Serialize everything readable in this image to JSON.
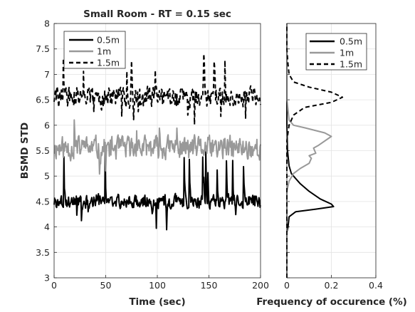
{
  "chart_data": [
    {
      "type": "line",
      "title": "Small Room -  RT = 0.15 sec",
      "xlabel": "Time (sec)",
      "ylabel": "BSMD STD",
      "xlim": [
        0,
        200
      ],
      "ylim": [
        3,
        8
      ],
      "xticks": [
        "0",
        "50",
        "100",
        "150",
        "200"
      ],
      "yticks": [
        "3",
        "3.5",
        "4",
        "4.5",
        "5",
        "5.5",
        "6",
        "6.5",
        "7",
        "7.5",
        "8"
      ],
      "grid": true,
      "legend_position": "top-left",
      "series": [
        {
          "name": "0.5m",
          "color": "#000000",
          "dash": "solid",
          "mean": 4.5,
          "spread": 0.12,
          "spikes": 0.7,
          "seed": 3
        },
        {
          "name": "1m",
          "color": "#999999",
          "dash": "solid",
          "mean": 5.55,
          "spread": 0.2,
          "spikes": 0.5,
          "seed": 11
        },
        {
          "name": "1.5m",
          "color": "#000000",
          "dash": "dashed",
          "mean": 6.55,
          "spread": 0.18,
          "spikes": 0.6,
          "seed": 29
        }
      ]
    },
    {
      "type": "line",
      "title": "",
      "xlabel": "Frequency of occurence (%)",
      "ylabel": "",
      "xlim": [
        0,
        0.4
      ],
      "ylim": [
        3,
        8
      ],
      "xticks": [
        "0",
        "0.2",
        "0.4"
      ],
      "grid": true,
      "legend_position": "top-right",
      "series": [
        {
          "name": "0.5m",
          "color": "#000000",
          "dash": "solid",
          "points": [
            [
              0,
              3.0
            ],
            [
              0,
              3.9
            ],
            [
              0.005,
              4.0
            ],
            [
              0.01,
              4.2
            ],
            [
              0.04,
              4.3
            ],
            [
              0.13,
              4.35
            ],
            [
              0.21,
              4.4
            ],
            [
              0.2,
              4.45
            ],
            [
              0.15,
              4.55
            ],
            [
              0.1,
              4.7
            ],
            [
              0.06,
              4.85
            ],
            [
              0.04,
              4.95
            ],
            [
              0.02,
              5.05
            ],
            [
              0.01,
              5.2
            ],
            [
              0.003,
              5.5
            ],
            [
              0,
              6.0
            ],
            [
              0,
              8.0
            ]
          ]
        },
        {
          "name": "1m",
          "color": "#999999",
          "dash": "solid",
          "points": [
            [
              0,
              3.0
            ],
            [
              0,
              4.7
            ],
            [
              0.01,
              4.9
            ],
            [
              0.03,
              5.05
            ],
            [
              0.06,
              5.15
            ],
            [
              0.1,
              5.25
            ],
            [
              0.11,
              5.35
            ],
            [
              0.1,
              5.4
            ],
            [
              0.13,
              5.45
            ],
            [
              0.12,
              5.55
            ],
            [
              0.14,
              5.6
            ],
            [
              0.2,
              5.78
            ],
            [
              0.17,
              5.85
            ],
            [
              0.08,
              5.95
            ],
            [
              0.03,
              6.0
            ],
            [
              0.01,
              6.1
            ],
            [
              0.005,
              6.3
            ],
            [
              0,
              6.5
            ],
            [
              0,
              8.0
            ]
          ]
        },
        {
          "name": "1.5m",
          "color": "#000000",
          "dash": "dashed",
          "points": [
            [
              0,
              3.0
            ],
            [
              0,
              5.7
            ],
            [
              0.01,
              6.0
            ],
            [
              0.03,
              6.2
            ],
            [
              0.08,
              6.35
            ],
            [
              0.2,
              6.45
            ],
            [
              0.25,
              6.55
            ],
            [
              0.2,
              6.65
            ],
            [
              0.1,
              6.75
            ],
            [
              0.03,
              6.85
            ],
            [
              0.01,
              7.0
            ],
            [
              0.005,
              7.2
            ],
            [
              0,
              7.5
            ],
            [
              0,
              8.0
            ]
          ]
        }
      ]
    }
  ]
}
